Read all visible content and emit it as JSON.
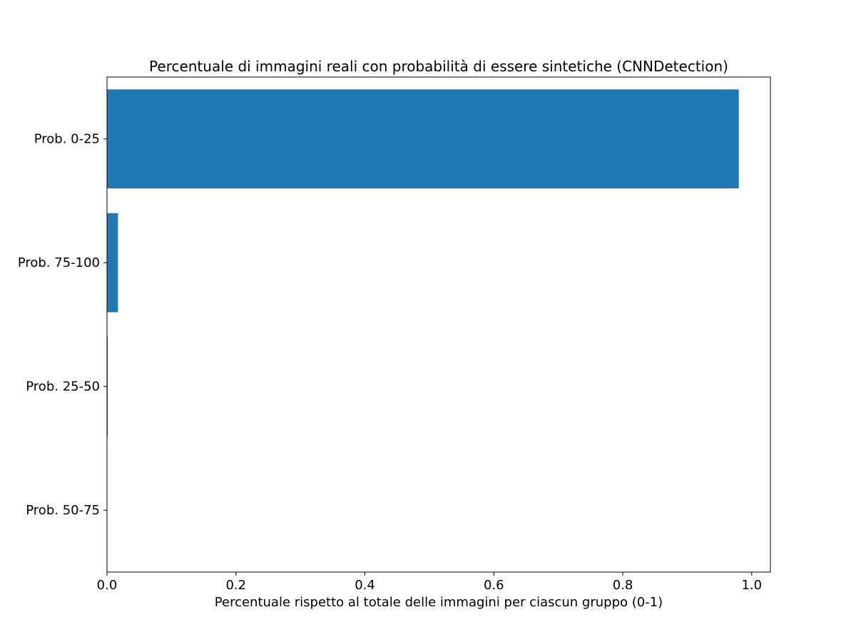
{
  "chart_data": {
    "type": "bar",
    "orientation": "horizontal",
    "title": "Percentuale di immagini reali con probabilità di essere sintetiche (CNNDetection)",
    "xlabel": "Percentuale rispetto al totale delle immagini per ciascun gruppo (0-1)",
    "ylabel": "",
    "categories": [
      "Prob. 0-25",
      "Prob. 75-100",
      "Prob. 25-50",
      "Prob. 50-75"
    ],
    "values": [
      0.98,
      0.017,
      0.001,
      0.0
    ],
    "xlim": [
      0,
      1.029
    ],
    "xticks": [
      0.0,
      0.2,
      0.4,
      0.6,
      0.8,
      1.0
    ],
    "xtick_labels": [
      "0.0",
      "0.2",
      "0.4",
      "0.6",
      "0.8",
      "1.0"
    ],
    "grid": false,
    "legend": "none",
    "colors": {
      "bar": "#1f77b4",
      "axes": "#000000",
      "background": "#ffffff"
    }
  }
}
